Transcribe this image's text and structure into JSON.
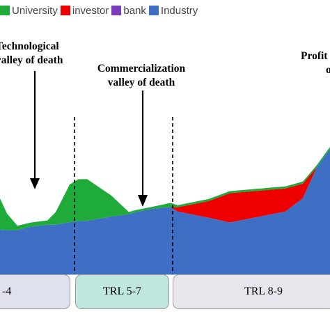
{
  "chart_data": {
    "type": "area",
    "stacked": true,
    "legend": {
      "placement": "top-left",
      "entries": [
        {
          "name": "University",
          "color": "#1fab3a"
        },
        {
          "name": "investor",
          "color": "#ee0000"
        },
        {
          "name": "bank",
          "color": "#7a3fb8"
        },
        {
          "name": "Industry",
          "color": "#3f6fc5"
        }
      ]
    },
    "x": [
      0,
      10,
      25,
      45,
      68,
      80,
      100,
      112,
      125,
      160,
      185,
      195,
      220,
      245,
      255,
      300,
      330,
      410,
      435,
      455,
      474
    ],
    "series": [
      {
        "name": "Industry",
        "color": "#3f6fc5",
        "values": [
          10,
          9,
          8,
          8,
          7,
          6,
          5.5,
          5,
          4,
          3,
          2,
          2,
          1.5,
          0,
          -3,
          -10,
          -15,
          -17,
          -13,
          0,
          7
        ]
      },
      {
        "name": "bank",
        "color": "#7a3fb8",
        "values": [
          0,
          0,
          0,
          0,
          0,
          0,
          0,
          0,
          0,
          0,
          0,
          0,
          0,
          0,
          0,
          0,
          0,
          0,
          0,
          0,
          0
        ]
      },
      {
        "name": "investor",
        "color": "#ee0000",
        "values": [
          0,
          0,
          0,
          0,
          0,
          0,
          0,
          0,
          0,
          0,
          0,
          0,
          0,
          0,
          2,
          8,
          14,
          11,
          7,
          0,
          0
        ]
      },
      {
        "name": "University",
        "color": "#1fab3a",
        "values": [
          15,
          8,
          2,
          2,
          2,
          6,
          18,
          20,
          20,
          10,
          1,
          1,
          1,
          2,
          1,
          1,
          1,
          1,
          1,
          1,
          1
        ]
      }
    ],
    "annotations": [
      {
        "label_line1": "Technological",
        "label_line2": "valley of death"
      },
      {
        "label_line1": "Commercialization",
        "label_line2": "valley of death"
      },
      {
        "label_line1": "Profit",
        "label_line2": "o"
      }
    ],
    "stages": [
      {
        "label": "-4"
      },
      {
        "label": "TRL 5-7",
        "color": "#bfe6df"
      },
      {
        "label": "TRL 8-9",
        "color": "#e6e6ec"
      }
    ],
    "stage_colors": {
      "first": "#dfe2ec"
    },
    "grid": false
  }
}
